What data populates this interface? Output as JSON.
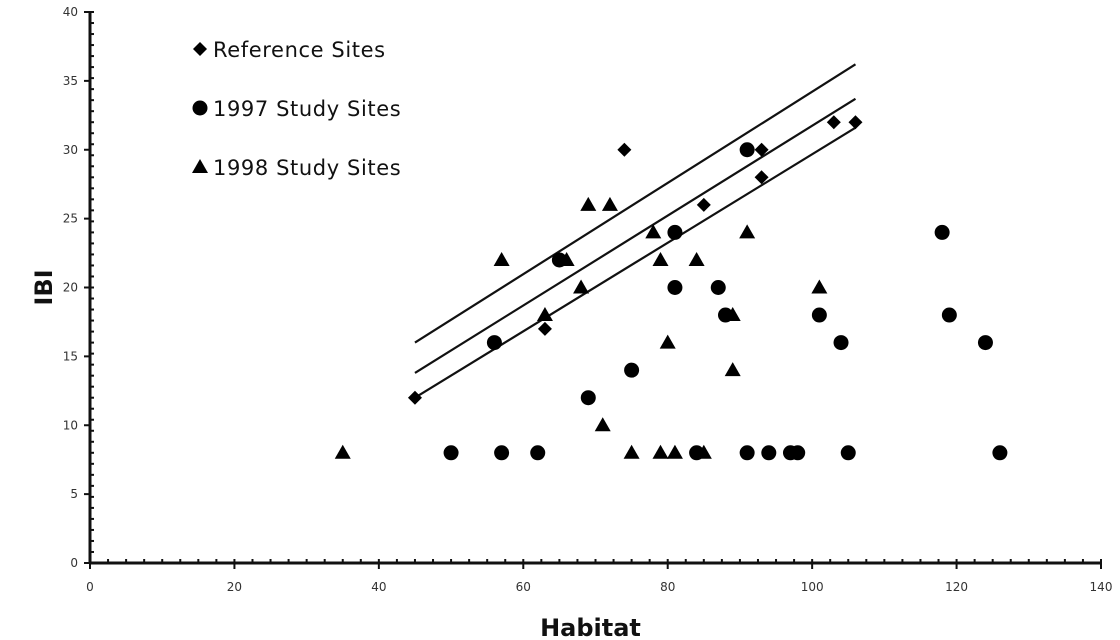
{
  "chart_data": {
    "type": "scatter",
    "title": "",
    "xlabel": "Habitat",
    "ylabel": "IBI",
    "xlim": [
      0,
      140
    ],
    "ylim": [
      0,
      40
    ],
    "x_ticks": [
      0,
      20,
      40,
      60,
      80,
      100,
      120,
      140
    ],
    "y_ticks": [
      0,
      5,
      10,
      15,
      20,
      25,
      30,
      35,
      40
    ],
    "grid": false,
    "legend_position": "top-left",
    "series": [
      {
        "name": "Reference Sites",
        "marker": "diamond",
        "color": "#000000",
        "points": [
          [
            45,
            12
          ],
          [
            63,
            17
          ],
          [
            65,
            22
          ],
          [
            74,
            30
          ],
          [
            81,
            24
          ],
          [
            85,
            26
          ],
          [
            91,
            30
          ],
          [
            93,
            30
          ],
          [
            93,
            28
          ],
          [
            103,
            32
          ],
          [
            106,
            32
          ]
        ]
      },
      {
        "name": "1997 Study Sites",
        "marker": "circle",
        "color": "#000000",
        "points": [
          [
            50,
            8
          ],
          [
            56,
            16
          ],
          [
            57,
            8
          ],
          [
            62,
            8
          ],
          [
            65,
            22
          ],
          [
            69,
            12
          ],
          [
            75,
            14
          ],
          [
            81,
            24
          ],
          [
            81,
            20
          ],
          [
            84,
            8
          ],
          [
            87,
            20
          ],
          [
            88,
            18
          ],
          [
            91,
            30
          ],
          [
            91,
            8
          ],
          [
            94,
            8
          ],
          [
            97,
            8
          ],
          [
            98,
            8
          ],
          [
            101,
            18
          ],
          [
            104,
            16
          ],
          [
            105,
            8
          ],
          [
            118,
            24
          ],
          [
            119,
            18
          ],
          [
            124,
            16
          ],
          [
            126,
            8
          ]
        ]
      },
      {
        "name": "1998 Study Sites",
        "marker": "triangle",
        "color": "#000000",
        "points": [
          [
            35,
            8
          ],
          [
            57,
            22
          ],
          [
            63,
            18
          ],
          [
            66,
            22
          ],
          [
            68,
            20
          ],
          [
            69,
            26
          ],
          [
            71,
            10
          ],
          [
            72,
            26
          ],
          [
            75,
            8
          ],
          [
            78,
            24
          ],
          [
            79,
            22
          ],
          [
            79,
            8
          ],
          [
            80,
            16
          ],
          [
            81,
            8
          ],
          [
            84,
            22
          ],
          [
            85,
            8
          ],
          [
            89,
            18
          ],
          [
            89,
            14
          ],
          [
            91,
            24
          ],
          [
            101,
            20
          ]
        ]
      }
    ],
    "lines": [
      {
        "x": [
          45,
          106
        ],
        "y": [
          16.0,
          36.2
        ]
      },
      {
        "x": [
          45,
          106
        ],
        "y": [
          13.8,
          33.7
        ]
      },
      {
        "x": [
          45,
          106
        ],
        "y": [
          12.0,
          31.6
        ]
      }
    ]
  }
}
